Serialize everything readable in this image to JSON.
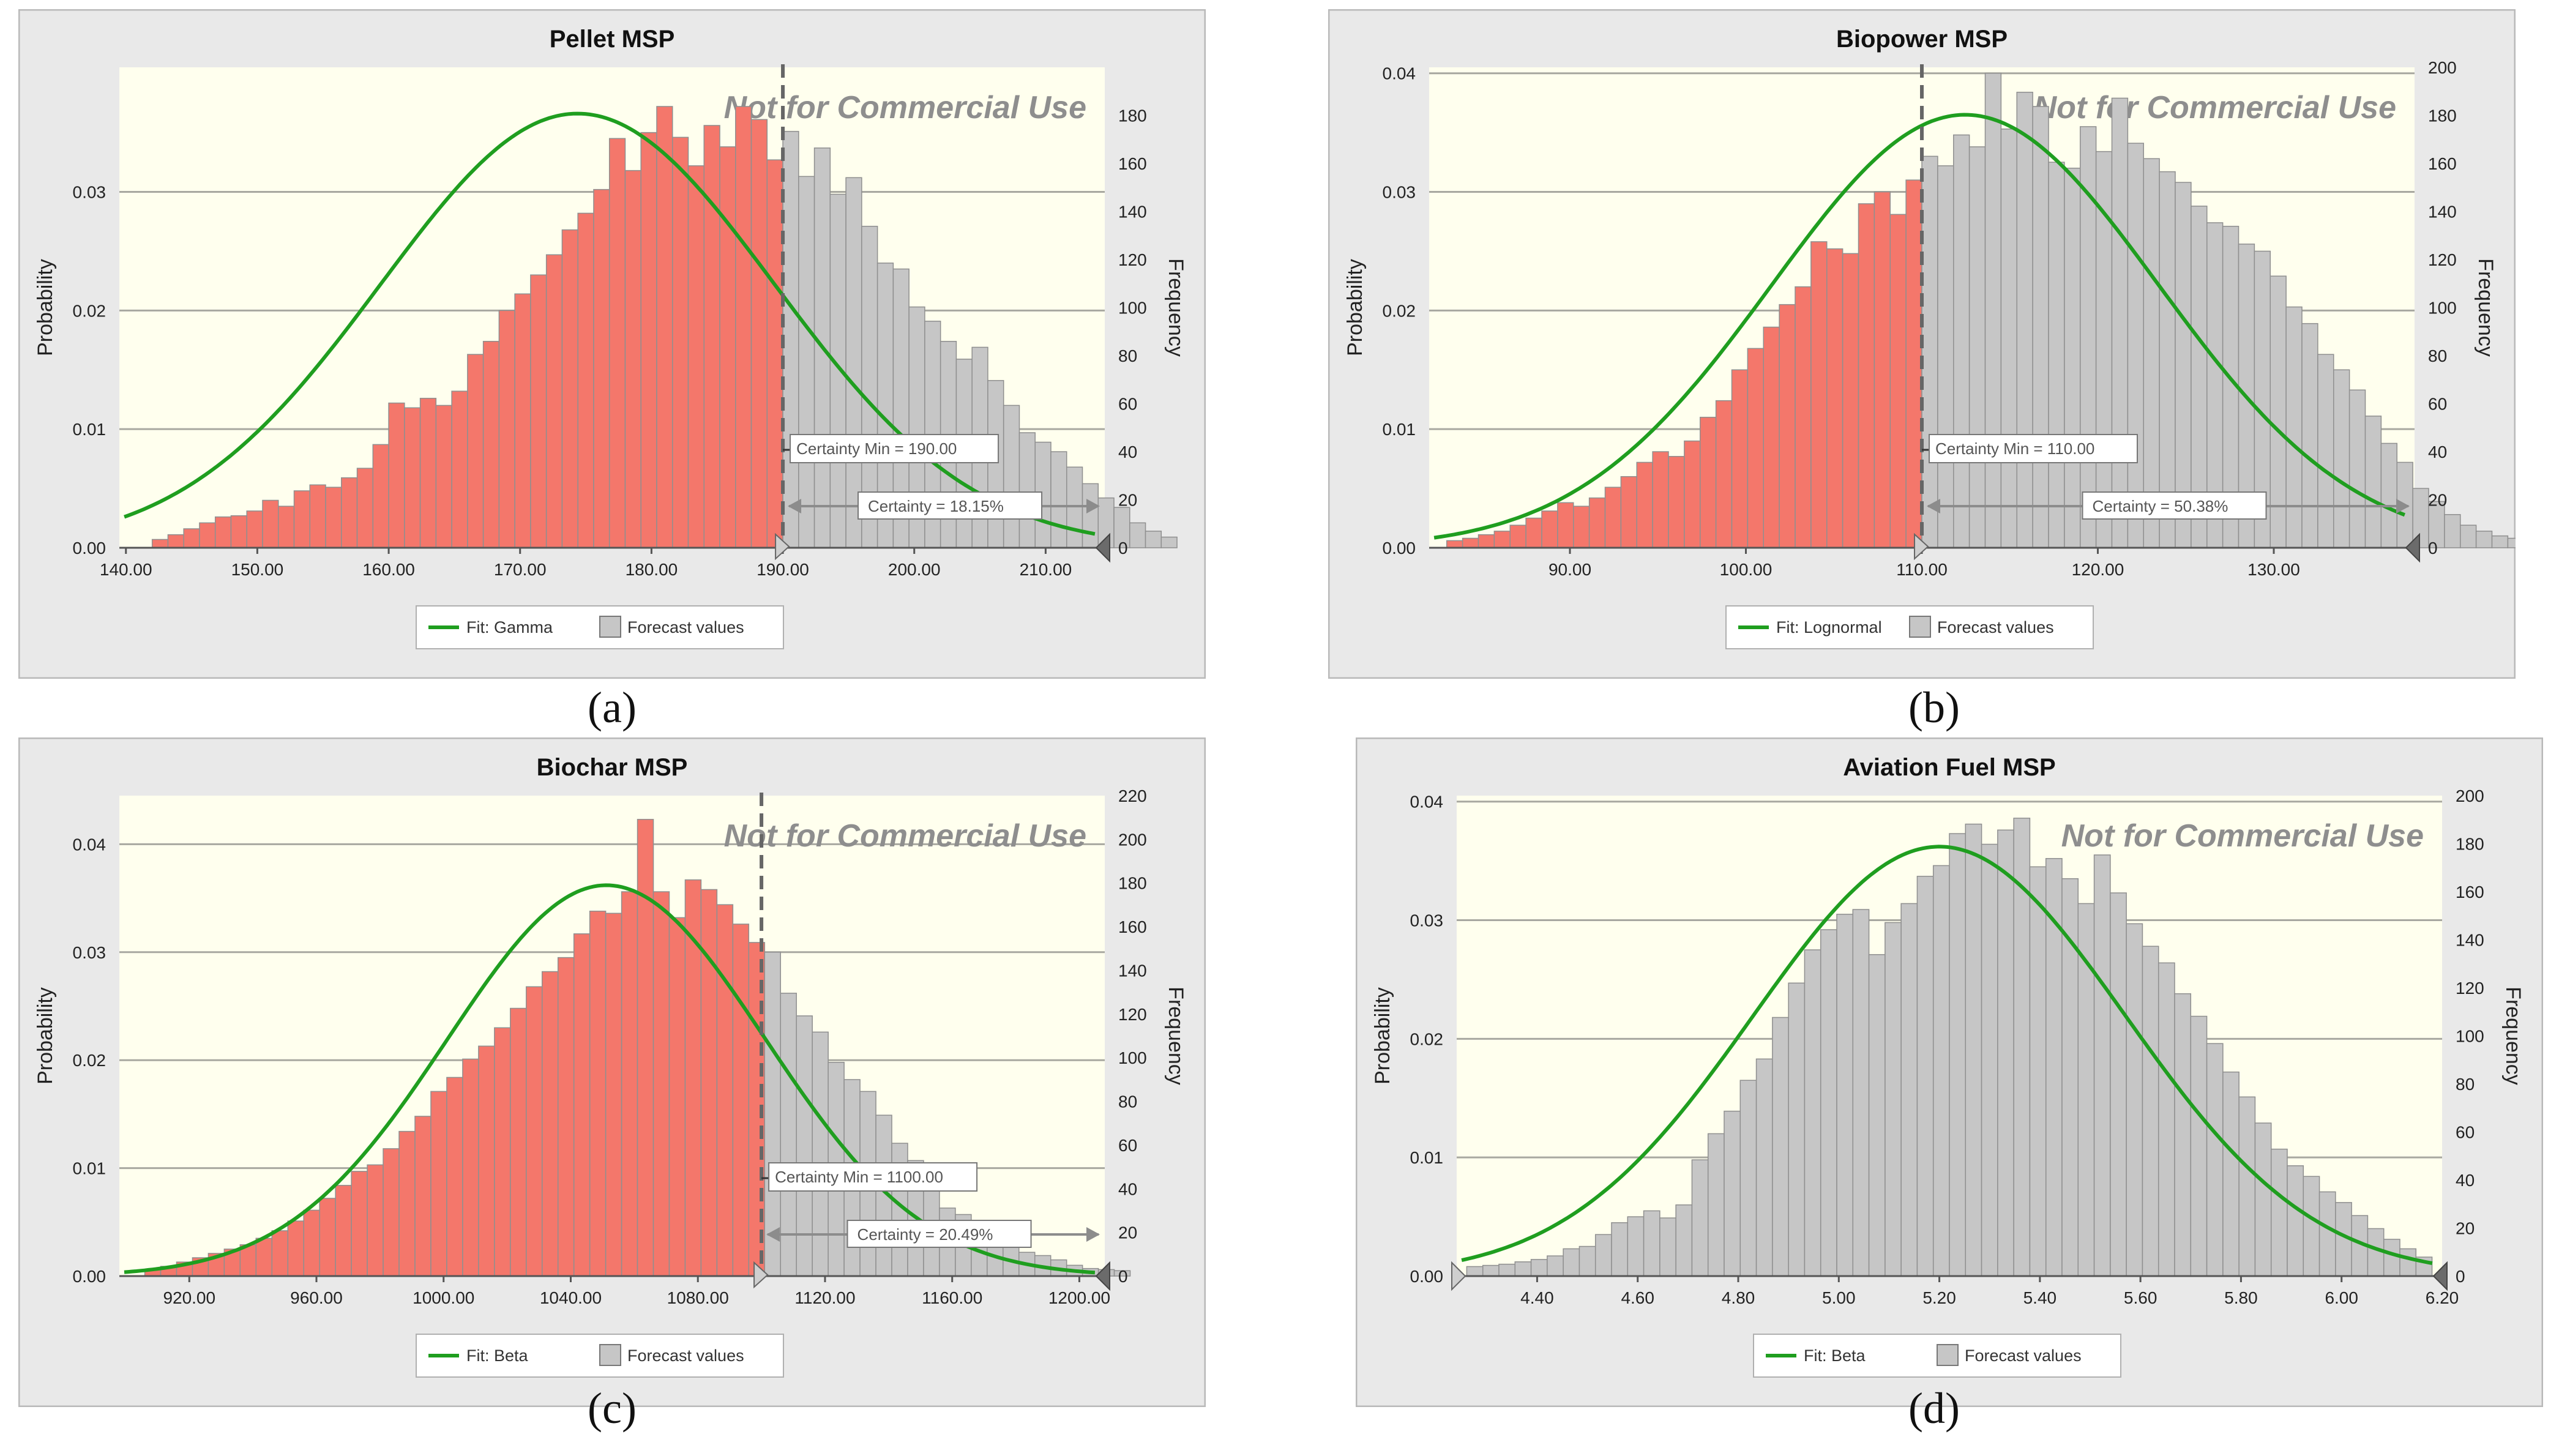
{
  "colors": {
    "frame_bg": "#e9e9e9",
    "plot_bg": "#ffffee",
    "below_bar": "#f4776b",
    "above_bar": "#c6c6c6",
    "bar_stroke": "#8f8f8f",
    "fit_line": "#1f9e1f",
    "marker_line": "#666666",
    "watermark": "#8e8e8e"
  },
  "icons": {
    "left_triangle": "left-grabber-icon",
    "right_triangle": "right-grabber-icon",
    "arrow": "double-arrow-icon"
  },
  "chart_data": [
    {
      "id": "a",
      "type": "bar",
      "title": "Pellet MSP",
      "sublabel": "(a)",
      "ylabel": "Probability",
      "y2label": "Frequency",
      "watermark": "Not for Commercial Use",
      "xlim": [
        139.5,
        214.5
      ],
      "ylim": [
        0,
        0.0405
      ],
      "y2lim": [
        0,
        200
      ],
      "xticks": [
        140,
        150,
        160,
        170,
        180,
        190,
        200,
        210
      ],
      "xtick_labels": [
        "140.00",
        "150.00",
        "160.00",
        "170.00",
        "180.00",
        "190.00",
        "200.00",
        "210.00"
      ],
      "yticks": [
        0,
        0.01,
        0.02,
        0.03
      ],
      "ytick_labels": [
        "0.00",
        "0.01",
        "0.02",
        "0.03"
      ],
      "y2ticks": [
        0,
        20,
        40,
        60,
        80,
        100,
        120,
        140,
        160,
        180
      ],
      "certainty_min": 190,
      "certainty_min_label": "Certainty Min = 190.00",
      "certainty_label": "Certainty = 18.15%",
      "fit_label": "Fit: Gamma",
      "forecast_label": "Forecast values",
      "fit": {
        "shape": "skew",
        "mean": 177,
        "sd": 15,
        "skew": -0.7,
        "peak": 0.0366
      },
      "bins": {
        "start": 142,
        "width": 1.2
      },
      "values": [
        0.0007,
        0.0011,
        0.0016,
        0.0021,
        0.0026,
        0.0027,
        0.0031,
        0.004,
        0.0035,
        0.0048,
        0.0053,
        0.0051,
        0.0059,
        0.0067,
        0.0087,
        0.0122,
        0.0118,
        0.0126,
        0.012,
        0.0132,
        0.0163,
        0.0174,
        0.02,
        0.0214,
        0.023,
        0.0247,
        0.0268,
        0.0282,
        0.0302,
        0.0345,
        0.0318,
        0.035,
        0.0372,
        0.0346,
        0.0322,
        0.0356,
        0.0338,
        0.0372,
        0.0361,
        0.0327,
        0.0351,
        0.0313,
        0.0337,
        0.0298,
        0.0312,
        0.0271,
        0.024,
        0.0235,
        0.0203,
        0.0191,
        0.0174,
        0.0159,
        0.0169,
        0.0141,
        0.012,
        0.0097,
        0.0089,
        0.0081,
        0.0068,
        0.0054,
        0.0042,
        0.0034,
        0.0021,
        0.0014,
        0.0009
      ]
    },
    {
      "id": "b",
      "type": "bar",
      "title": "Biopower MSP",
      "sublabel": "(b)",
      "ylabel": "Probability",
      "y2label": "Frequency",
      "watermark": "Not for Commercial Use",
      "xlim": [
        82,
        138
      ],
      "ylim": [
        0,
        0.0405
      ],
      "y2lim": [
        0,
        200
      ],
      "xticks": [
        90,
        100,
        110,
        120,
        130
      ],
      "xtick_labels": [
        "90.00",
        "100.00",
        "110.00",
        "120.00",
        "130.00"
      ],
      "yticks": [
        0,
        0.01,
        0.02,
        0.03,
        0.04
      ],
      "ytick_labels": [
        "0.00",
        "0.01",
        "0.02",
        "0.03",
        "0.04"
      ],
      "y2ticks": [
        0,
        20,
        40,
        60,
        80,
        100,
        120,
        140,
        160,
        180,
        200
      ],
      "certainty_min": 110,
      "certainty_min_label": "Certainty Min = 110.00",
      "certainty_label": "Certainty = 50.38%",
      "fit_label": "Fit: Lognormal",
      "forecast_label": "Forecast values",
      "fit": {
        "shape": "skew",
        "mean": 111.5,
        "sd": 11,
        "skew": 0.35,
        "peak": 0.0365
      },
      "bins": {
        "start": 83,
        "width": 0.9
      },
      "values": [
        0.0006,
        0.0008,
        0.0011,
        0.0014,
        0.0019,
        0.0025,
        0.0031,
        0.0038,
        0.0035,
        0.0042,
        0.0051,
        0.006,
        0.0072,
        0.0081,
        0.0077,
        0.009,
        0.011,
        0.0124,
        0.015,
        0.0168,
        0.0186,
        0.0205,
        0.022,
        0.0258,
        0.0252,
        0.0248,
        0.029,
        0.03,
        0.0281,
        0.031,
        0.033,
        0.0322,
        0.0348,
        0.0338,
        0.04,
        0.0353,
        0.0384,
        0.0372,
        0.0325,
        0.032,
        0.0355,
        0.0334,
        0.0379,
        0.0341,
        0.0328,
        0.0317,
        0.0308,
        0.0288,
        0.0274,
        0.0271,
        0.0256,
        0.025,
        0.0229,
        0.0203,
        0.0189,
        0.0163,
        0.015,
        0.0133,
        0.0111,
        0.0088,
        0.0072,
        0.005,
        0.0039,
        0.0028,
        0.0019,
        0.0014,
        0.001,
        0.0008
      ]
    },
    {
      "id": "c",
      "type": "bar",
      "title": "Biochar MSP",
      "sublabel": "(c)",
      "ylabel": "Probability",
      "y2label": "Frequency",
      "watermark": "Not for Commercial Use",
      "xlim": [
        898,
        1208
      ],
      "ylim": [
        0,
        0.0445
      ],
      "y2lim": [
        0,
        220
      ],
      "xticks": [
        920,
        960,
        1000,
        1040,
        1080,
        1120,
        1160,
        1200
      ],
      "xtick_labels": [
        "920.00",
        "960.00",
        "1000.00",
        "1040.00",
        "1080.00",
        "1120.00",
        "1160.00",
        "1200.00"
      ],
      "yticks": [
        0,
        0.01,
        0.02,
        0.03,
        0.04
      ],
      "ytick_labels": [
        "0.00",
        "0.01",
        "0.02",
        "0.03",
        "0.04"
      ],
      "y2ticks": [
        0,
        20,
        40,
        60,
        80,
        100,
        120,
        140,
        160,
        180,
        200,
        220
      ],
      "certainty_min": 1100,
      "certainty_min_label": "Certainty Min = 1100.00",
      "certainty_label": "Certainty = 20.49%",
      "fit_label": "Fit: Beta",
      "forecast_label": "Forecast values",
      "fit": {
        "shape": "skew",
        "mean": 1055,
        "sd": 50,
        "skew": -0.3,
        "peak": 0.0362
      },
      "bins": {
        "start": 906,
        "width": 5
      },
      "values": [
        0.0006,
        0.0009,
        0.0013,
        0.0017,
        0.0021,
        0.0025,
        0.0029,
        0.0035,
        0.0042,
        0.0051,
        0.0061,
        0.0072,
        0.0084,
        0.0097,
        0.0103,
        0.0118,
        0.0134,
        0.0148,
        0.0171,
        0.0184,
        0.0201,
        0.0213,
        0.023,
        0.0248,
        0.0268,
        0.0282,
        0.0295,
        0.0317,
        0.0338,
        0.0336,
        0.0356,
        0.0423,
        0.0356,
        0.0332,
        0.0367,
        0.0358,
        0.0344,
        0.0326,
        0.0309,
        0.03,
        0.0262,
        0.0241,
        0.0226,
        0.0198,
        0.0182,
        0.0171,
        0.0149,
        0.0123,
        0.0107,
        0.0082,
        0.0063,
        0.0057,
        0.0046,
        0.0035,
        0.0027,
        0.0022,
        0.0019,
        0.0015,
        0.001,
        0.0007,
        0.0006,
        0.0005
      ]
    },
    {
      "id": "d",
      "type": "bar",
      "title": "Aviation Fuel MSP",
      "sublabel": "(d)",
      "ylabel": "Probability",
      "y2label": "Frequency",
      "watermark": "Not for Commercial Use",
      "xlim": [
        4.24,
        6.2
      ],
      "ylim": [
        0,
        0.0405
      ],
      "y2lim": [
        0,
        200
      ],
      "xticks": [
        4.4,
        4.6,
        4.8,
        5.0,
        5.2,
        5.4,
        5.6,
        5.8,
        6.0,
        6.2
      ],
      "xtick_labels": [
        "4.40",
        "4.60",
        "4.80",
        "5.00",
        "5.20",
        "5.40",
        "5.60",
        "5.80",
        "6.00",
        "6.20"
      ],
      "yticks": [
        0,
        0.01,
        0.02,
        0.03,
        0.04
      ],
      "ytick_labels": [
        "0.00",
        "0.01",
        "0.02",
        "0.03",
        "0.04"
      ],
      "y2ticks": [
        0,
        20,
        40,
        60,
        80,
        100,
        120,
        140,
        160,
        180,
        200
      ],
      "certainty_min": null,
      "certainty_min_label": "",
      "certainty_label": "",
      "fit_label": "Fit: Beta",
      "forecast_label": "Forecast values",
      "fit": {
        "shape": "skew",
        "mean": 5.2,
        "sd": 0.37,
        "skew": 0,
        "peak": 0.0362
      },
      "bins": {
        "start": 4.26,
        "width": 0.032
      },
      "values": [
        0.0008,
        0.0009,
        0.001,
        0.0012,
        0.0014,
        0.0017,
        0.0023,
        0.0025,
        0.0035,
        0.0045,
        0.005,
        0.0055,
        0.0049,
        0.006,
        0.0098,
        0.012,
        0.0139,
        0.0165,
        0.0183,
        0.0218,
        0.0247,
        0.0275,
        0.0292,
        0.0305,
        0.0309,
        0.0271,
        0.0298,
        0.0314,
        0.0337,
        0.0346,
        0.0373,
        0.0381,
        0.0364,
        0.0376,
        0.0386,
        0.0345,
        0.0352,
        0.0335,
        0.0314,
        0.0355,
        0.0323,
        0.0297,
        0.0278,
        0.0264,
        0.0238,
        0.0219,
        0.0196,
        0.0172,
        0.0151,
        0.0129,
        0.0107,
        0.0093,
        0.0084,
        0.0071,
        0.0062,
        0.0051,
        0.004,
        0.0031,
        0.0023,
        0.0016
      ]
    }
  ]
}
